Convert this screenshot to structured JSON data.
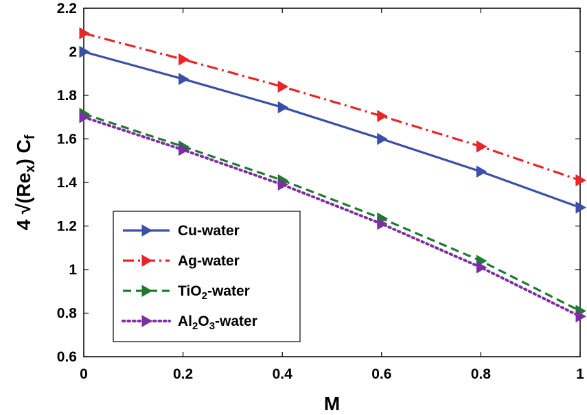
{
  "chart_data": {
    "type": "line",
    "xlabel": "M",
    "ylabel": {
      "prefix": "4 √(Re",
      "sub1": "x",
      "middle": ") C",
      "sub2": "f"
    },
    "xlim": [
      0,
      1
    ],
    "ylim": [
      0.6,
      2.2
    ],
    "x": [
      0,
      0.2,
      0.4,
      0.6,
      0.8,
      1
    ],
    "x_ticks": [
      0,
      0.2,
      0.4,
      0.6,
      0.8,
      1
    ],
    "x_tick_labels": [
      "0",
      "0.2",
      "0.4",
      "0.6",
      "0.8",
      "1"
    ],
    "y_ticks": [
      0.6,
      0.8,
      1,
      1.2,
      1.4,
      1.6,
      1.8,
      2,
      2.2
    ],
    "y_tick_labels": [
      "0.6",
      "0.8",
      "1",
      "1.2",
      "1.4",
      "1.6",
      "1.8",
      "2",
      "2.2"
    ],
    "grid": false,
    "legend_position": "bottom-left",
    "series": [
      {
        "name": "Cu-water",
        "legend": [
          {
            "t": "Cu-water"
          }
        ],
        "values": [
          2.0,
          1.875,
          1.745,
          1.6,
          1.45,
          1.285
        ],
        "color": "#3a4fa8",
        "dash": "solid",
        "marker": "triangle-right"
      },
      {
        "name": "Ag-water",
        "legend": [
          {
            "t": "Ag-water"
          }
        ],
        "values": [
          2.085,
          1.965,
          1.84,
          1.705,
          1.565,
          1.41
        ],
        "color": "#e8262a",
        "dash": "dashdot",
        "marker": "triangle-right"
      },
      {
        "name": "TiO2-water",
        "legend": [
          {
            "t": "TiO"
          },
          {
            "t": "2",
            "sub": true
          },
          {
            "t": "-water"
          }
        ],
        "values": [
          1.715,
          1.565,
          1.41,
          1.235,
          1.04,
          0.81
        ],
        "color": "#1e7a2e",
        "dash": "dashed",
        "marker": "triangle-right"
      },
      {
        "name": "Al2O3-water",
        "legend": [
          {
            "t": "Al"
          },
          {
            "t": "2",
            "sub": true
          },
          {
            "t": "O"
          },
          {
            "t": "3",
            "sub": true
          },
          {
            "t": "-water"
          }
        ],
        "values": [
          1.7,
          1.55,
          1.39,
          1.21,
          1.01,
          0.785
        ],
        "color": "#7b2fa3",
        "dash": "dotted",
        "marker": "triangle-right"
      }
    ]
  }
}
